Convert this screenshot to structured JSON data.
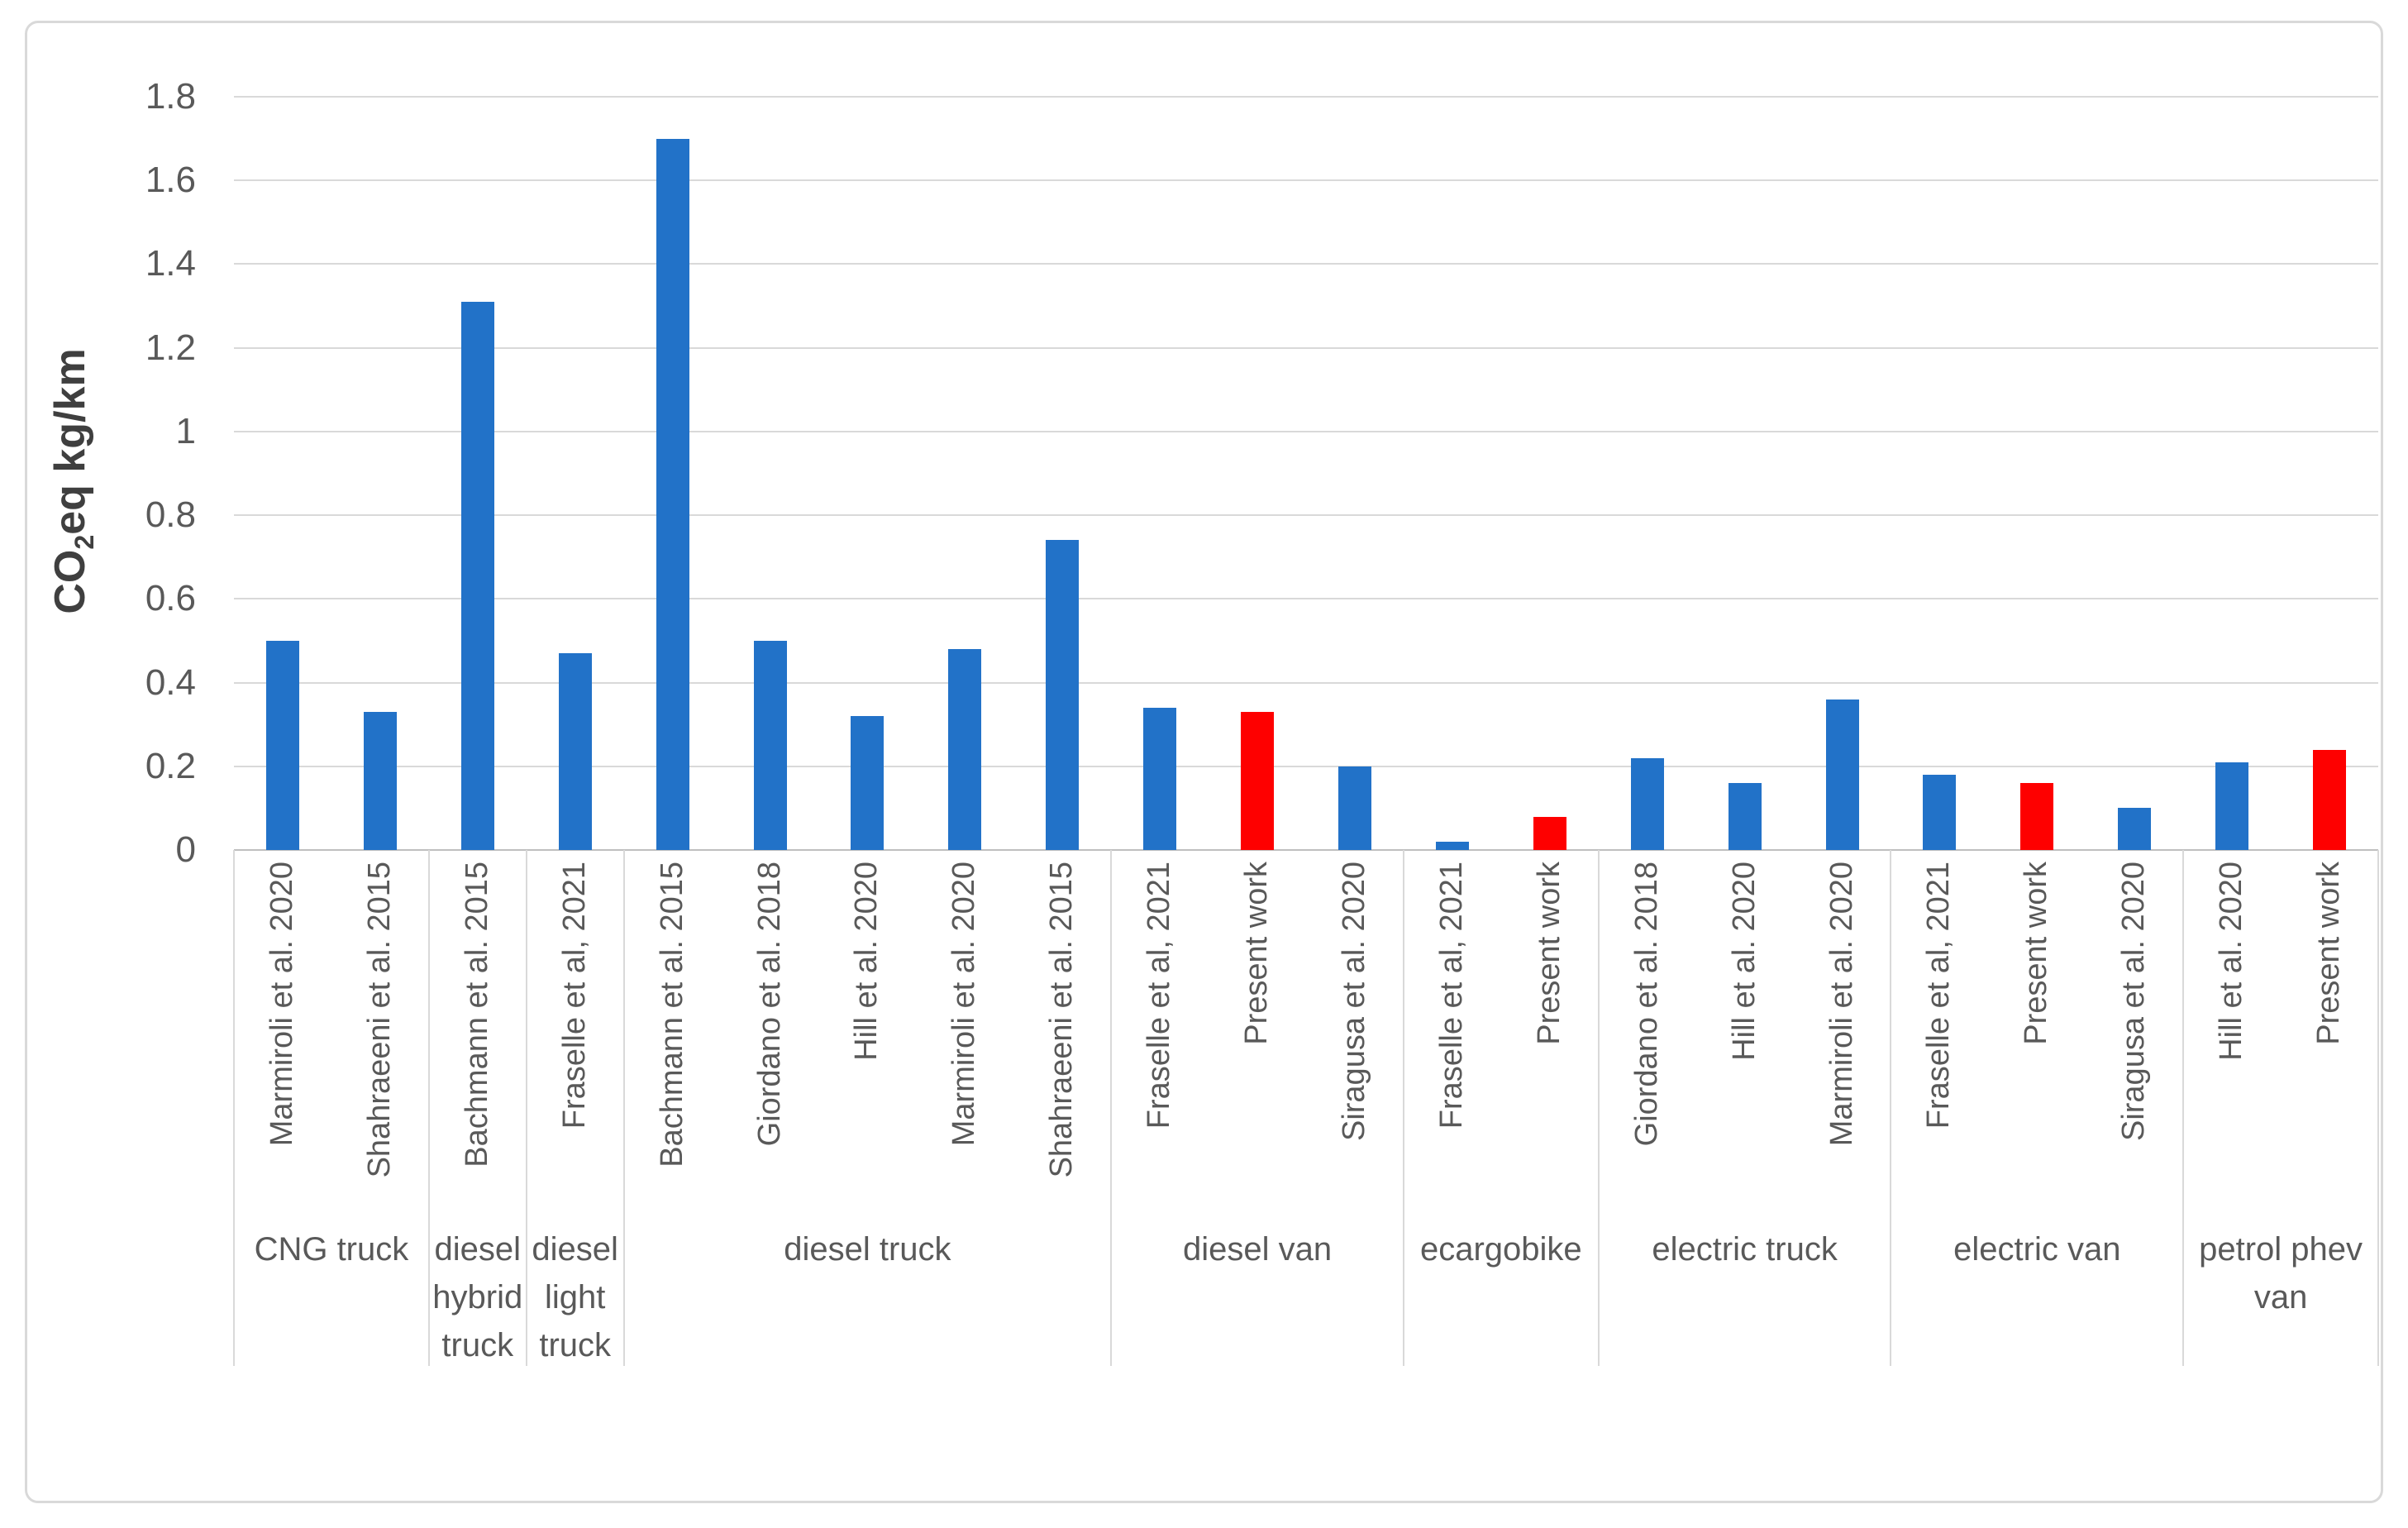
{
  "figure": {
    "background": "#ffffff",
    "border_color": "#d9d9d9"
  },
  "colors": {
    "bar_blue": "#2272c8",
    "bar_present_work_red": "#fe0000",
    "gridline": "#d9d9d9",
    "axis_line": "#bfbfbf",
    "separator": "#d9d9d9",
    "tick_text": "#595959",
    "label_text": "#595959",
    "axis_title_text": "#3f3f3f"
  },
  "chart_data": {
    "type": "bar",
    "title": "",
    "ylabel": "CO2eq kg/km",
    "ylabel_parts": {
      "prefix": "CO",
      "sub": "2",
      "suffix": "eq kg/km"
    },
    "ylim": [
      0,
      1.8
    ],
    "ytick_interval": 0.2,
    "yticks": [
      "1.8",
      "1.6",
      "1.4",
      "1.2",
      "1",
      "0.8",
      "0.6",
      "0.4",
      "0.2",
      "0"
    ],
    "grid": true,
    "legend_position": "none",
    "bar_color_legend": {
      "literature": "blue bars = published studies",
      "present_work": "red bars = Present work"
    },
    "groups": [
      {
        "category": "CNG truck",
        "category_lines": [
          "CNG truck"
        ],
        "bars": [
          {
            "label": "Marmiroli et al. 2020",
            "value": 0.5,
            "series": "literature"
          },
          {
            "label": "Shahraeeni et al. 2015",
            "value": 0.33,
            "series": "literature"
          }
        ]
      },
      {
        "category": "diesel hybrid truck",
        "category_lines": [
          "diesel",
          "hybrid",
          "truck"
        ],
        "bars": [
          {
            "label": "Bachmann et al. 2015",
            "value": 1.31,
            "series": "literature"
          }
        ]
      },
      {
        "category": "diesel light truck",
        "category_lines": [
          "diesel",
          "light",
          "truck"
        ],
        "bars": [
          {
            "label": "Fraselle et al, 2021",
            "value": 0.47,
            "series": "literature"
          }
        ]
      },
      {
        "category": "diesel truck",
        "category_lines": [
          "diesel truck"
        ],
        "bars": [
          {
            "label": "Bachmann et al. 2015",
            "value": 1.7,
            "series": "literature"
          },
          {
            "label": "Giordano et al. 2018",
            "value": 0.5,
            "series": "literature"
          },
          {
            "label": "Hill et al. 2020",
            "value": 0.32,
            "series": "literature"
          },
          {
            "label": "Marmiroli et al. 2020",
            "value": 0.48,
            "series": "literature"
          },
          {
            "label": "Shahraeeni et al. 2015",
            "value": 0.74,
            "series": "literature"
          }
        ]
      },
      {
        "category": "diesel van",
        "category_lines": [
          "diesel van"
        ],
        "bars": [
          {
            "label": "Fraselle et al, 2021",
            "value": 0.34,
            "series": "literature"
          },
          {
            "label": "Present work",
            "value": 0.33,
            "series": "present_work"
          },
          {
            "label": "Siragusa et al. 2020",
            "value": 0.2,
            "series": "literature"
          }
        ]
      },
      {
        "category": "ecargobike",
        "category_lines": [
          "ecargobike"
        ],
        "bars": [
          {
            "label": "Fraselle et al, 2021",
            "value": 0.02,
            "series": "literature"
          },
          {
            "label": "Present work",
            "value": 0.08,
            "series": "present_work"
          }
        ]
      },
      {
        "category": "electric truck",
        "category_lines": [
          "electric truck"
        ],
        "bars": [
          {
            "label": "Giordano et al. 2018",
            "value": 0.22,
            "series": "literature"
          },
          {
            "label": "Hill et al. 2020",
            "value": 0.16,
            "series": "literature"
          },
          {
            "label": "Marmiroli et al. 2020",
            "value": 0.36,
            "series": "literature"
          }
        ]
      },
      {
        "category": "electric van",
        "category_lines": [
          "electric van"
        ],
        "bars": [
          {
            "label": "Fraselle et al, 2021",
            "value": 0.18,
            "series": "literature"
          },
          {
            "label": "Present work",
            "value": 0.16,
            "series": "present_work"
          },
          {
            "label": "Siragusa et al. 2020",
            "value": 0.1,
            "series": "literature"
          }
        ]
      },
      {
        "category": "petrol phev van",
        "category_lines": [
          "petrol phev",
          "van"
        ],
        "bars": [
          {
            "label": "Hill et al. 2020",
            "value": 0.21,
            "series": "literature"
          },
          {
            "label": "Present work",
            "value": 0.24,
            "series": "present_work"
          }
        ]
      }
    ]
  }
}
